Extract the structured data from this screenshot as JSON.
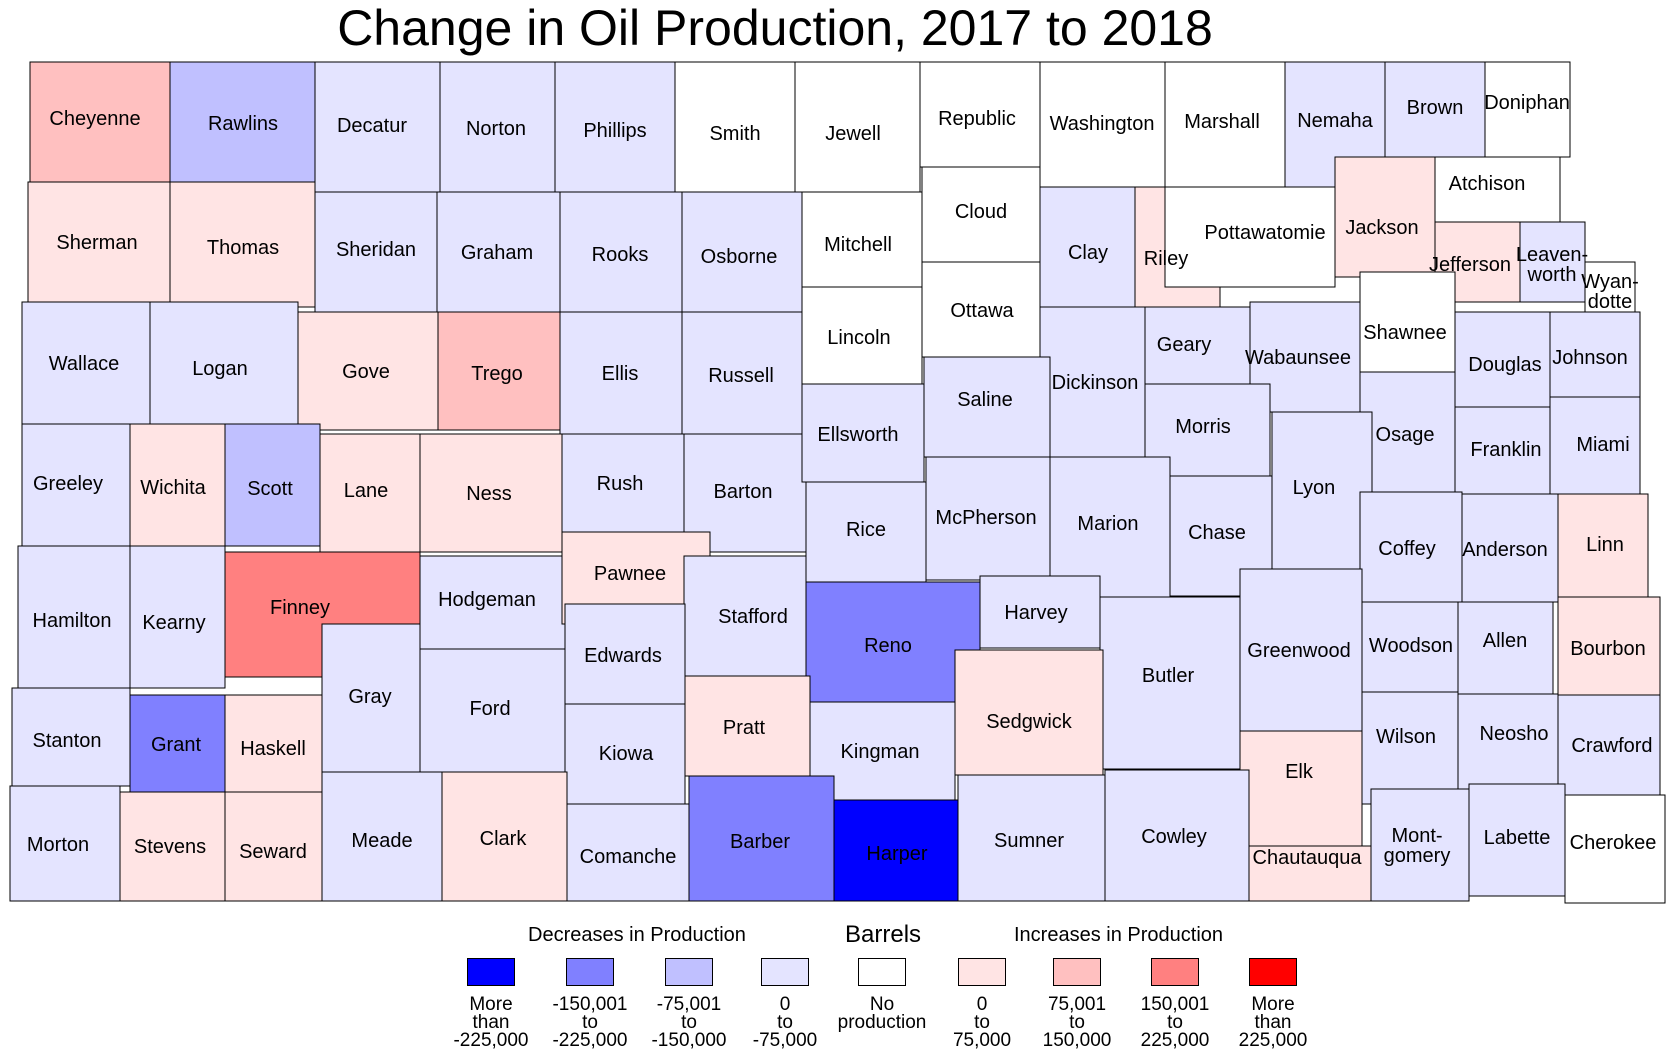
{
  "title": "Change in Oil Production, 2017 to 2018",
  "legend": {
    "title": "Barrels",
    "decrease_label": "Decreases in Production",
    "increase_label": "Increases in Production",
    "classes": [
      {
        "id": "d4",
        "color": "#0000ff",
        "lines": [
          "More",
          "than",
          "-225,000"
        ]
      },
      {
        "id": "d3",
        "color": "#8080ff",
        "lines": [
          "-150,001",
          "to",
          "-225,000"
        ]
      },
      {
        "id": "d2",
        "color": "#c0c0ff",
        "lines": [
          "-75,001",
          "to",
          "-150,000"
        ]
      },
      {
        "id": "d1",
        "color": "#e4e4ff",
        "lines": [
          "0",
          "to",
          "-75,000"
        ]
      },
      {
        "id": "np",
        "color": "#ffffff",
        "lines": [
          "No",
          "production"
        ]
      },
      {
        "id": "i1",
        "color": "#ffe4e4",
        "lines": [
          "0",
          "to",
          "75,000"
        ]
      },
      {
        "id": "i2",
        "color": "#ffc0c0",
        "lines": [
          "75,001",
          "to",
          "150,000"
        ]
      },
      {
        "id": "i3",
        "color": "#ff8080",
        "lines": [
          "150,001",
          "to",
          "225,000"
        ]
      },
      {
        "id": "i4",
        "color": "#ff0000",
        "lines": [
          "More",
          "than",
          "225,000"
        ]
      }
    ]
  },
  "counties": [
    {
      "name": "Cheyenne",
      "cls": "i2"
    },
    {
      "name": "Rawlins",
      "cls": "d2"
    },
    {
      "name": "Decatur",
      "cls": "d1"
    },
    {
      "name": "Norton",
      "cls": "d1"
    },
    {
      "name": "Phillips",
      "cls": "d1"
    },
    {
      "name": "Smith",
      "cls": "np"
    },
    {
      "name": "Jewell",
      "cls": "np"
    },
    {
      "name": "Republic",
      "cls": "np"
    },
    {
      "name": "Washington",
      "cls": "np"
    },
    {
      "name": "Marshall",
      "cls": "np"
    },
    {
      "name": "Nemaha",
      "cls": "d1"
    },
    {
      "name": "Brown",
      "cls": "d1"
    },
    {
      "name": "Doniphan",
      "cls": "np"
    },
    {
      "name": "Sherman",
      "cls": "i1"
    },
    {
      "name": "Thomas",
      "cls": "i1"
    },
    {
      "name": "Sheridan",
      "cls": "d1"
    },
    {
      "name": "Graham",
      "cls": "d1"
    },
    {
      "name": "Rooks",
      "cls": "d1"
    },
    {
      "name": "Osborne",
      "cls": "d1"
    },
    {
      "name": "Mitchell",
      "cls": "np"
    },
    {
      "name": "Cloud",
      "cls": "np"
    },
    {
      "name": "Clay",
      "cls": "d1"
    },
    {
      "name": "Riley",
      "cls": "i1"
    },
    {
      "name": "Pottawatomie",
      "cls": "np"
    },
    {
      "name": "Jackson",
      "cls": "i1"
    },
    {
      "name": "Atchison",
      "cls": "np"
    },
    {
      "name": "Jefferson",
      "cls": "i1"
    },
    {
      "name": "Leaven-",
      "cls": "d1",
      "line2": "worth"
    },
    {
      "name": "Wyan-",
      "cls": "np",
      "line2": "dotte"
    },
    {
      "name": "Wallace",
      "cls": "d1"
    },
    {
      "name": "Logan",
      "cls": "d1"
    },
    {
      "name": "Gove",
      "cls": "i1"
    },
    {
      "name": "Trego",
      "cls": "i2"
    },
    {
      "name": "Ellis",
      "cls": "d1"
    },
    {
      "name": "Russell",
      "cls": "d1"
    },
    {
      "name": "Lincoln",
      "cls": "np"
    },
    {
      "name": "Ottawa",
      "cls": "np"
    },
    {
      "name": "Dickinson",
      "cls": "d1"
    },
    {
      "name": "Geary",
      "cls": "d1"
    },
    {
      "name": "Wabaunsee",
      "cls": "d1"
    },
    {
      "name": "Shawnee",
      "cls": "np"
    },
    {
      "name": "Douglas",
      "cls": "d1"
    },
    {
      "name": "Johnson",
      "cls": "d1"
    },
    {
      "name": "Greeley",
      "cls": "d1"
    },
    {
      "name": "Wichita",
      "cls": "i1"
    },
    {
      "name": "Scott",
      "cls": "d2"
    },
    {
      "name": "Lane",
      "cls": "i1"
    },
    {
      "name": "Ness",
      "cls": "i1"
    },
    {
      "name": "Rush",
      "cls": "d1"
    },
    {
      "name": "Barton",
      "cls": "d1"
    },
    {
      "name": "Ellsworth",
      "cls": "d1"
    },
    {
      "name": "Saline",
      "cls": "d1"
    },
    {
      "name": "Morris",
      "cls": "d1"
    },
    {
      "name": "Osage",
      "cls": "d1"
    },
    {
      "name": "Franklin",
      "cls": "d1"
    },
    {
      "name": "Miami",
      "cls": "d1"
    },
    {
      "name": "Hamilton",
      "cls": "d1"
    },
    {
      "name": "Kearny",
      "cls": "d1"
    },
    {
      "name": "Finney",
      "cls": "i3"
    },
    {
      "name": "Hodgeman",
      "cls": "d1"
    },
    {
      "name": "Pawnee",
      "cls": "i1"
    },
    {
      "name": "Stafford",
      "cls": "d1"
    },
    {
      "name": "Rice",
      "cls": "d1"
    },
    {
      "name": "McPherson",
      "cls": "d1"
    },
    {
      "name": "Marion",
      "cls": "d1"
    },
    {
      "name": "Chase",
      "cls": "d1"
    },
    {
      "name": "Lyon",
      "cls": "d1"
    },
    {
      "name": "Coffey",
      "cls": "d1"
    },
    {
      "name": "Anderson",
      "cls": "d1"
    },
    {
      "name": "Linn",
      "cls": "i1"
    },
    {
      "name": "Edwards",
      "cls": "d1"
    },
    {
      "name": "Gray",
      "cls": "d1"
    },
    {
      "name": "Ford",
      "cls": "d1"
    },
    {
      "name": "Reno",
      "cls": "d3"
    },
    {
      "name": "Harvey",
      "cls": "d1"
    },
    {
      "name": "Butler",
      "cls": "d1"
    },
    {
      "name": "Greenwood",
      "cls": "d1"
    },
    {
      "name": "Woodson",
      "cls": "d1"
    },
    {
      "name": "Allen",
      "cls": "d1"
    },
    {
      "name": "Bourbon",
      "cls": "i1"
    },
    {
      "name": "Stanton",
      "cls": "d1"
    },
    {
      "name": "Grant",
      "cls": "d3"
    },
    {
      "name": "Haskell",
      "cls": "i1"
    },
    {
      "name": "Kiowa",
      "cls": "d1"
    },
    {
      "name": "Pratt",
      "cls": "i1"
    },
    {
      "name": "Kingman",
      "cls": "d1"
    },
    {
      "name": "Sedgwick",
      "cls": "i1"
    },
    {
      "name": "Elk",
      "cls": "i1"
    },
    {
      "name": "Wilson",
      "cls": "d1"
    },
    {
      "name": "Neosho",
      "cls": "d1"
    },
    {
      "name": "Crawford",
      "cls": "d1"
    },
    {
      "name": "Morton",
      "cls": "d1"
    },
    {
      "name": "Stevens",
      "cls": "i1"
    },
    {
      "name": "Seward",
      "cls": "i1"
    },
    {
      "name": "Meade",
      "cls": "d1"
    },
    {
      "name": "Clark",
      "cls": "i1"
    },
    {
      "name": "Comanche",
      "cls": "d1"
    },
    {
      "name": "Barber",
      "cls": "d3"
    },
    {
      "name": "Harper",
      "cls": "d4"
    },
    {
      "name": "Sumner",
      "cls": "d1"
    },
    {
      "name": "Cowley",
      "cls": "d1"
    },
    {
      "name": "Chautauqua",
      "cls": "i1"
    },
    {
      "name": "Mont-",
      "cls": "d1",
      "line2": "gomery"
    },
    {
      "name": "Labette",
      "cls": "d1"
    },
    {
      "name": "Cherokee",
      "cls": "np"
    }
  ]
}
